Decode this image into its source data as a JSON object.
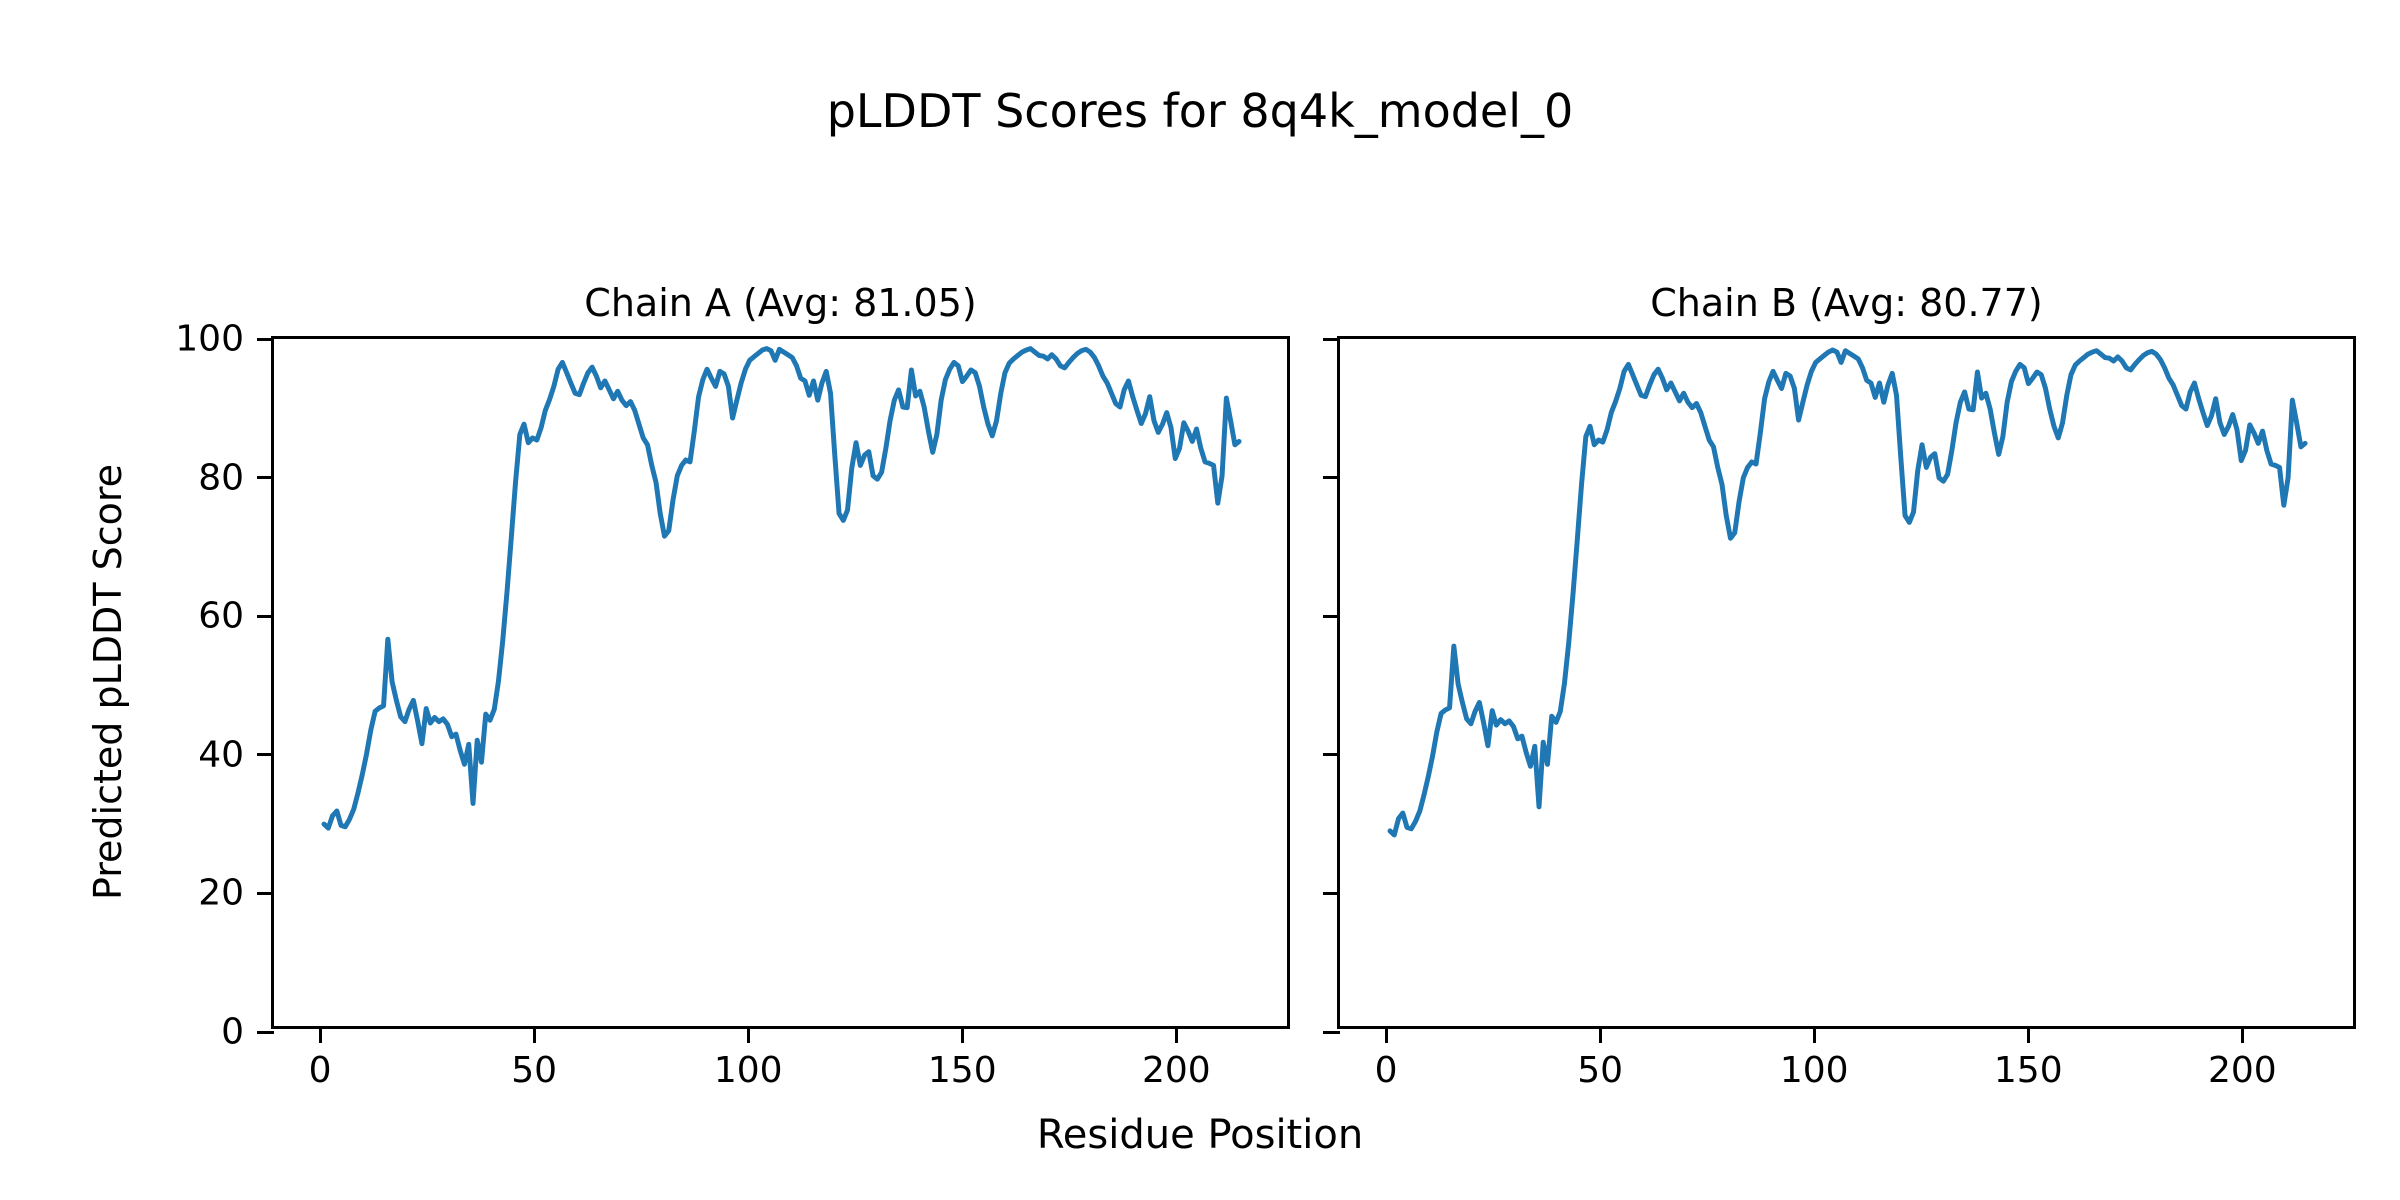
{
  "figure": {
    "suptitle": "pLDDT Scores for 8q4k_model_0",
    "shared_xlabel": "Residue Position",
    "shared_ylabel": "Predicted pLDDT Score",
    "line_color": "#1f77b4",
    "background_color": "#ffffff",
    "text_color": "#000000"
  },
  "chart_data": [
    {
      "type": "line",
      "title": "Chain A (Avg: 81.05)",
      "average_plddt": 81.05,
      "xlabel": "Residue Position",
      "ylabel": "Predicted pLDDT Score",
      "x_tick_labels": [
        0,
        50,
        100,
        150,
        200
      ],
      "y_tick_labels": [
        0,
        20,
        40,
        60,
        80,
        100
      ],
      "xlim": [
        -10.75,
        227.25
      ],
      "ylim": [
        0,
        100
      ],
      "grid": false,
      "legend_position": "none",
      "series": [
        {
          "name": "Chain A",
          "color": "#1f77b4",
          "x_first_residue": 1,
          "values": [
            29.4,
            28.8,
            30.6,
            31.3,
            29.2,
            29.0,
            30.1,
            31.6,
            34.0,
            36.6,
            39.6,
            43.1,
            45.8,
            46.3,
            46.6,
            56.3,
            50.1,
            47.4,
            45.0,
            44.3,
            46.1,
            47.4,
            44.4,
            41.1,
            46.2,
            44.1,
            44.9,
            44.3,
            44.7,
            43.9,
            42.1,
            42.5,
            40.1,
            38.1,
            41.0,
            32.4,
            41.6,
            38.4,
            45.4,
            44.5,
            46.1,
            50.2,
            56.1,
            63.2,
            71.1,
            79.2,
            86.1,
            87.6,
            84.9,
            85.6,
            85.3,
            87.1,
            89.6,
            91.2,
            93.1,
            95.6,
            96.6,
            95.1,
            93.6,
            92.1,
            91.9,
            93.6,
            95.1,
            95.9,
            94.6,
            92.9,
            93.9,
            92.6,
            91.3,
            92.4,
            91.1,
            90.3,
            90.9,
            89.6,
            87.6,
            85.6,
            84.6,
            81.6,
            79.1,
            74.6,
            71.3,
            72.1,
            76.6,
            80.1,
            81.6,
            82.4,
            82.1,
            86.6,
            91.6,
            94.1,
            95.6,
            94.3,
            93.1,
            95.3,
            94.9,
            93.1,
            88.5,
            91.1,
            93.6,
            95.6,
            96.9,
            97.4,
            97.9,
            98.4,
            98.6,
            98.3,
            96.9,
            98.5,
            98.1,
            97.7,
            97.3,
            96.1,
            94.3,
            93.9,
            91.8,
            93.9,
            91.1,
            93.6,
            95.3,
            92.1,
            83.1,
            74.6,
            73.6,
            75.1,
            81.2,
            84.9,
            81.6,
            83.1,
            83.6,
            80.1,
            79.6,
            80.6,
            84.1,
            88.1,
            91.1,
            92.6,
            90.1,
            90.0,
            95.5,
            91.7,
            92.4,
            90.1,
            86.6,
            83.5,
            86.1,
            91.1,
            94.1,
            95.6,
            96.6,
            96.1,
            93.8,
            94.6,
            95.5,
            95.1,
            93.1,
            90.1,
            87.6,
            85.9,
            88.1,
            92.1,
            95.1,
            96.5,
            97.1,
            97.6,
            98.1,
            98.4,
            98.6,
            98.1,
            97.6,
            97.5,
            97.1,
            97.7,
            97.1,
            96.1,
            95.8,
            96.6,
            97.3,
            97.9,
            98.3,
            98.5,
            98.1,
            97.3,
            96.1,
            94.6,
            93.6,
            92.1,
            90.6,
            90.1,
            92.6,
            93.9,
            91.6,
            89.6,
            87.7,
            89.1,
            91.6,
            88.1,
            86.4,
            87.6,
            89.3,
            87.1,
            82.6,
            84.1,
            87.8,
            86.6,
            85.1,
            86.9,
            84.1,
            82.1,
            81.9,
            81.6,
            76.1,
            80.1,
            91.4,
            88.1,
            84.6,
            85.1
          ]
        }
      ]
    },
    {
      "type": "line",
      "title": "Chain B (Avg: 80.77)",
      "average_plddt": 80.77,
      "xlabel": "Residue Position",
      "ylabel": "Predicted pLDDT Score",
      "x_tick_labels": [
        0,
        50,
        100,
        150,
        200
      ],
      "y_tick_labels": [
        0,
        20,
        40,
        60,
        80,
        100
      ],
      "xlim": [
        -10.75,
        227.25
      ],
      "ylim": [
        0,
        100
      ],
      "grid": false,
      "legend_position": "none",
      "series": [
        {
          "name": "Chain B",
          "color": "#1f77b4",
          "x_first_residue": 1,
          "values": [
            28.4,
            27.8,
            30.2,
            31.0,
            28.9,
            28.7,
            29.8,
            31.3,
            33.7,
            36.3,
            39.3,
            42.8,
            45.5,
            46.0,
            46.3,
            55.3,
            49.8,
            47.1,
            44.7,
            44.0,
            45.8,
            47.1,
            44.1,
            40.8,
            45.9,
            43.8,
            44.6,
            44.0,
            44.4,
            43.6,
            41.8,
            42.2,
            39.8,
            37.8,
            40.7,
            31.9,
            41.3,
            38.1,
            45.1,
            44.2,
            45.8,
            49.9,
            55.8,
            62.9,
            70.8,
            78.9,
            85.8,
            87.3,
            84.6,
            85.3,
            85.0,
            86.8,
            89.3,
            90.9,
            92.8,
            95.3,
            96.3,
            94.8,
            93.3,
            91.8,
            91.6,
            93.3,
            94.8,
            95.6,
            94.3,
            92.6,
            93.6,
            92.3,
            91.0,
            92.1,
            90.8,
            90.0,
            90.6,
            89.3,
            87.3,
            85.3,
            84.3,
            81.3,
            78.8,
            74.3,
            71.0,
            71.8,
            76.3,
            79.8,
            81.3,
            82.1,
            81.8,
            86.3,
            91.3,
            93.8,
            95.3,
            94.0,
            92.8,
            95.0,
            94.6,
            92.8,
            88.2,
            90.8,
            93.3,
            95.3,
            96.6,
            97.1,
            97.6,
            98.1,
            98.4,
            98.1,
            96.6,
            98.3,
            97.9,
            97.5,
            97.1,
            95.8,
            94.0,
            93.6,
            91.5,
            93.6,
            90.8,
            93.3,
            95.0,
            91.8,
            82.8,
            74.3,
            73.3,
            74.8,
            80.9,
            84.6,
            81.3,
            82.8,
            83.3,
            79.8,
            79.3,
            80.3,
            83.8,
            87.8,
            90.8,
            92.3,
            89.8,
            89.7,
            95.2,
            91.4,
            92.1,
            89.8,
            86.3,
            83.2,
            85.8,
            90.8,
            93.8,
            95.3,
            96.3,
            95.8,
            93.5,
            94.3,
            95.2,
            94.8,
            92.8,
            89.8,
            87.3,
            85.6,
            87.8,
            91.8,
            94.8,
            96.2,
            96.8,
            97.3,
            97.8,
            98.1,
            98.3,
            97.8,
            97.3,
            97.2,
            96.8,
            97.4,
            96.8,
            95.8,
            95.5,
            96.3,
            97.0,
            97.6,
            98.0,
            98.2,
            97.8,
            97.0,
            95.8,
            94.3,
            93.3,
            91.8,
            90.3,
            89.8,
            92.3,
            93.6,
            91.3,
            89.3,
            87.4,
            88.8,
            91.3,
            87.8,
            86.1,
            87.3,
            89.0,
            86.8,
            82.3,
            83.8,
            87.5,
            86.3,
            84.8,
            86.6,
            83.8,
            81.8,
            81.6,
            81.3,
            75.8,
            79.8,
            91.1,
            87.8,
            84.3,
            84.8
          ]
        }
      ]
    }
  ]
}
